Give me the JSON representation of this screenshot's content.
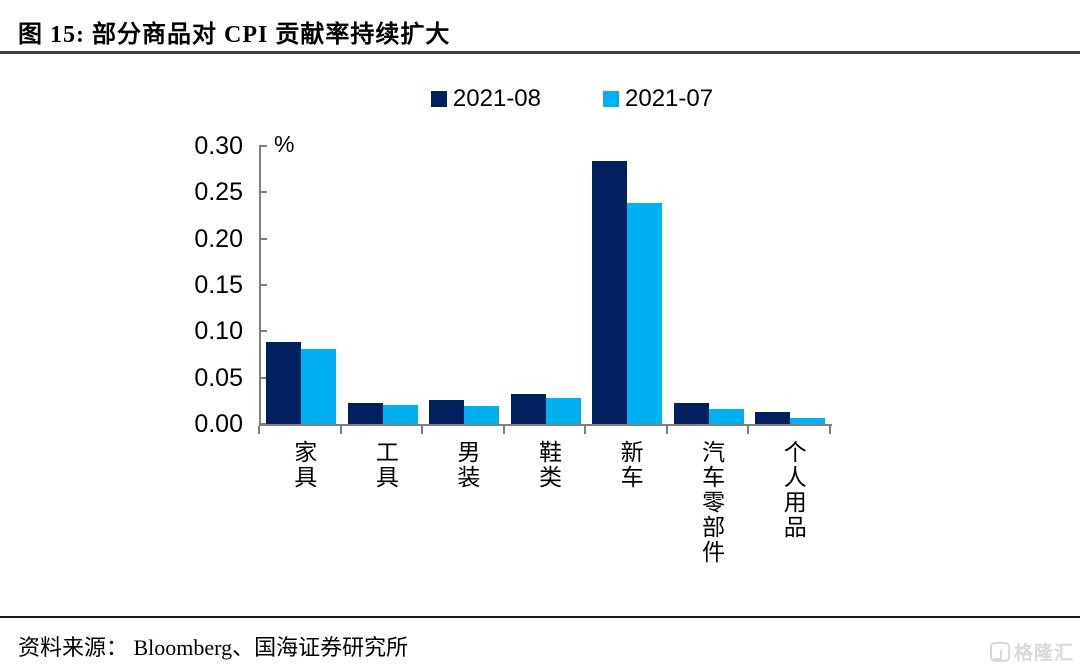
{
  "meta": {
    "figure_title": "图 15:  部分商品对 CPI 贡献率持续扩大"
  },
  "chart_data": {
    "type": "bar",
    "title": "图 15: 部分商品对 CPI 贡献率持续扩大",
    "unit_label": "%",
    "categories": [
      "家具",
      "工具",
      "男装",
      "鞋类",
      "新车",
      "汽车零部件",
      "个人用品"
    ],
    "series": [
      {
        "name": "2021-08",
        "color": "#002060",
        "values": [
          0.088,
          0.023,
          0.026,
          0.032,
          0.284,
          0.023,
          0.013
        ]
      },
      {
        "name": "2021-07",
        "color": "#00b0f0",
        "values": [
          0.081,
          0.02,
          0.019,
          0.028,
          0.238,
          0.016,
          0.006
        ]
      }
    ],
    "xlabel": "",
    "ylabel": "%",
    "ylim": [
      0,
      0.3
    ],
    "ytick_labels": [
      "0.30",
      "0.25",
      "0.20",
      "0.15",
      "0.10",
      "0.05",
      "0.00"
    ],
    "grid": false,
    "legend_position": "top-center",
    "axis_color": "#808080"
  },
  "footer": {
    "source": "资料来源：  Bloomberg、国海证券研究所",
    "watermark": "格隆汇"
  }
}
